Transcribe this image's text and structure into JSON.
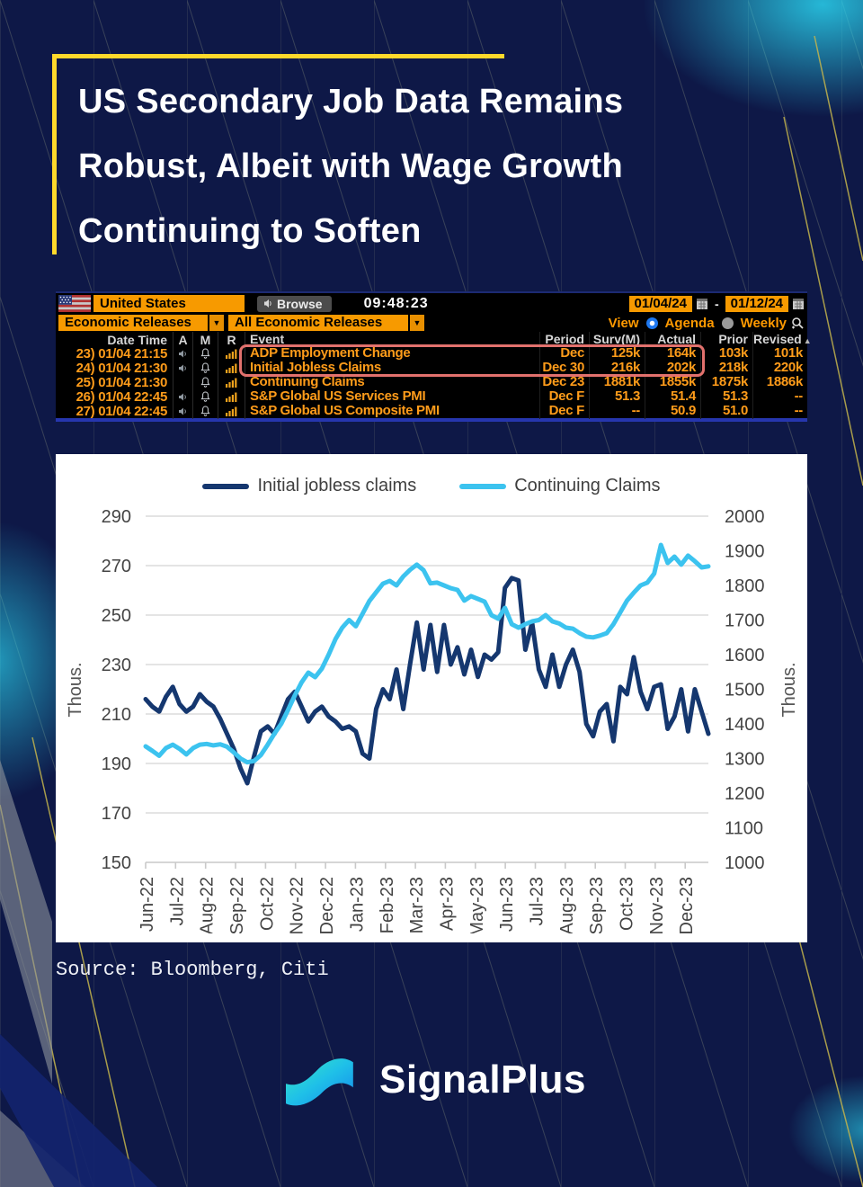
{
  "title": {
    "lines": [
      "US Secondary Job Data Remains",
      "Robust, Albeit with Wage Growth",
      "Continuing to Soften"
    ]
  },
  "terminal": {
    "region_field": "United States",
    "browse_label": "Browse",
    "time": "09:48:23",
    "date_from": "01/04/24",
    "date_separator": "-",
    "date_to": "01/12/24",
    "filter_primary": "Economic Releases",
    "filter_secondary": "All Economic Releases",
    "view_label": "View",
    "agenda_label": "Agenda",
    "weekly_label": "Weekly",
    "sort_indicator": "▲",
    "columns": [
      "Date Time",
      "A",
      "M",
      "R",
      "Event",
      "Period",
      "Surv(M)",
      "Actual",
      "Prior",
      "Revised"
    ],
    "rows": [
      {
        "num": "23)",
        "datetime": "01/04 21:15",
        "speaker": true,
        "event": "ADP Employment Change",
        "period": "Dec",
        "surv": "125k",
        "actual": "164k",
        "prior": "103k",
        "revised": "101k",
        "highlighted": true
      },
      {
        "num": "24)",
        "datetime": "01/04 21:30",
        "speaker": true,
        "event": "Initial Jobless Claims",
        "period": "Dec 30",
        "surv": "216k",
        "actual": "202k",
        "prior": "218k",
        "revised": "220k",
        "highlighted": true
      },
      {
        "num": "25)",
        "datetime": "01/04 21:30",
        "speaker": false,
        "event": "Continuing Claims",
        "period": "Dec 23",
        "surv": "1881k",
        "actual": "1855k",
        "prior": "1875k",
        "revised": "1886k",
        "highlighted": false
      },
      {
        "num": "26)",
        "datetime": "01/04 22:45",
        "speaker": true,
        "event": "S&P Global US Services PMI",
        "period": "Dec F",
        "surv": "51.3",
        "actual": "51.4",
        "prior": "51.3",
        "revised": "--",
        "highlighted": false
      },
      {
        "num": "27)",
        "datetime": "01/04 22:45",
        "speaker": true,
        "event": "S&P Global US Composite PMI",
        "period": "Dec F",
        "surv": "--",
        "actual": "50.9",
        "prior": "51.0",
        "revised": "--",
        "highlighted": false
      }
    ]
  },
  "chart_data": {
    "type": "line",
    "title": "",
    "x_tick_labels": [
      "Jun-22",
      "Jul-22",
      "Aug-22",
      "Sep-22",
      "Oct-22",
      "Nov-22",
      "Dec-22",
      "Jan-23",
      "Feb-23",
      "Mar-23",
      "Apr-23",
      "May-23",
      "Jun-23",
      "Jul-23",
      "Aug-23",
      "Sep-23",
      "Oct-23",
      "Nov-23",
      "Dec-23"
    ],
    "left_axis": {
      "label": "Thous.",
      "min": 150,
      "max": 290,
      "step": 20
    },
    "right_axis": {
      "label": "Thous.",
      "min": 1000,
      "max": 2000,
      "step": 100
    },
    "grid": true,
    "legend_position": "top",
    "series": [
      {
        "name": "Initial jobless claims",
        "axis": "left",
        "color": "#15376f",
        "values": [
          216,
          213,
          211,
          217,
          221,
          214,
          211,
          213,
          218,
          215,
          213,
          208,
          202,
          196,
          188,
          182,
          193,
          203,
          205,
          202,
          209,
          216,
          219,
          213,
          207,
          211,
          213,
          209,
          207,
          204,
          205,
          203,
          194,
          192,
          212,
          220,
          216,
          228,
          212,
          230,
          247,
          228,
          246,
          227,
          246,
          230,
          237,
          226,
          236,
          225,
          234,
          232,
          235,
          261,
          265,
          264,
          236,
          247,
          228,
          221,
          234,
          221,
          230,
          236,
          227,
          206,
          201,
          211,
          214,
          199,
          221,
          218,
          233,
          219,
          212,
          221,
          222,
          204,
          209,
          220,
          203,
          220,
          211,
          202
        ]
      },
      {
        "name": "Continuing Claims",
        "axis": "right",
        "color": "#3cc3ef",
        "values": [
          1335,
          1322,
          1308,
          1330,
          1340,
          1328,
          1312,
          1330,
          1340,
          1342,
          1338,
          1341,
          1334,
          1318,
          1300,
          1289,
          1293,
          1310,
          1340,
          1372,
          1400,
          1440,
          1482,
          1520,
          1548,
          1535,
          1560,
          1600,
          1645,
          1678,
          1700,
          1682,
          1718,
          1755,
          1780,
          1805,
          1813,
          1800,
          1826,
          1845,
          1860,
          1844,
          1806,
          1808,
          1800,
          1792,
          1787,
          1756,
          1769,
          1761,
          1753,
          1714,
          1704,
          1735,
          1688,
          1678,
          1688,
          1696,
          1700,
          1714,
          1696,
          1690,
          1678,
          1675,
          1662,
          1652,
          1650,
          1655,
          1662,
          1688,
          1722,
          1756,
          1779,
          1800,
          1808,
          1834,
          1917,
          1865,
          1883,
          1860,
          1886,
          1870,
          1852,
          1855
        ]
      }
    ]
  },
  "source": "Source: Bloomberg, Citi",
  "brand": "SignalPlus",
  "colors": {
    "background": "#0e1847",
    "accent_yellow": "#ffd92b",
    "terminal_orange": "#f79a00",
    "highlight_red": "#e2716d",
    "series_navy": "#15376f",
    "series_cyan": "#3cc3ef"
  }
}
